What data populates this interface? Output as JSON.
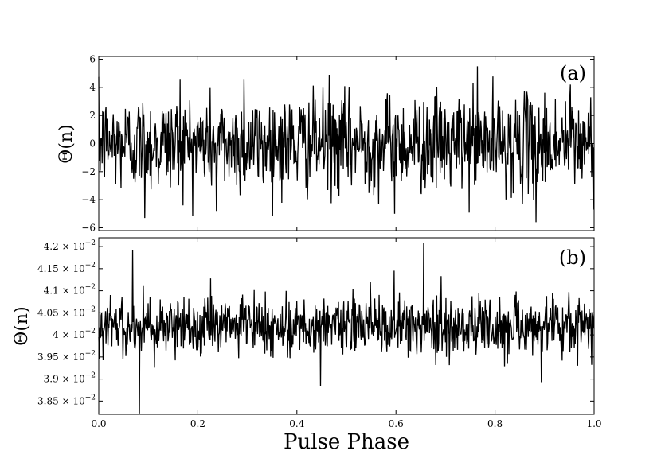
{
  "chart_data": [
    {
      "type": "line",
      "panel_label": "(a)",
      "ylabel": "Θ(n)",
      "xlabel": "",
      "xlim": [
        0.0,
        1.0
      ],
      "ylim": [
        -6.2,
        6.2
      ],
      "yticks": [
        -6,
        -4,
        -2,
        0,
        2,
        4,
        6
      ],
      "ytick_labels": [
        "−6",
        "−4",
        "−2",
        "0",
        "2",
        "4",
        "6"
      ],
      "n_points": 1024,
      "x": [
        0.0,
        1.0
      ],
      "series": [
        {
          "color": "#000000",
          "sample_count": 1024,
          "mean": 0.0,
          "std": 1.8,
          "min": -5.6,
          "max": 5.5,
          "extremes": [
            {
              "x": 0.093,
              "y": -5.3
            },
            {
              "x": 0.164,
              "y": 4.6
            },
            {
              "x": 0.293,
              "y": 4.6
            },
            {
              "x": 0.465,
              "y": 4.9
            },
            {
              "x": 0.764,
              "y": 5.5
            },
            {
              "x": 0.883,
              "y": -5.6
            },
            {
              "x": 0.952,
              "y": 4.2
            },
            {
              "x": 0.597,
              "y": -5.0
            },
            {
              "x": 0.238,
              "y": -4.8
            }
          ]
        }
      ]
    },
    {
      "type": "line",
      "panel_label": "(b)",
      "ylabel": "Θ(n)",
      "xlabel": "Pulse Phase",
      "xlim": [
        0.0,
        1.0
      ],
      "ylim": [
        0.0382,
        0.0422
      ],
      "yticks": [
        0.0385,
        0.039,
        0.0395,
        0.04,
        0.0405,
        0.041,
        0.0415,
        0.042
      ],
      "ytick_mantissas": [
        "3.85",
        "3.9",
        "3.95",
        "4",
        "4.05",
        "4.1",
        "4.15",
        "4.2"
      ],
      "ytick_times": "×",
      "ytick_base": "10",
      "ytick_exp": "−2",
      "xticks": [
        0.0,
        0.2,
        0.4,
        0.6,
        0.8,
        1.0
      ],
      "xtick_labels": [
        "0.0",
        "0.2",
        "0.4",
        "0.6",
        "0.8",
        "1.0"
      ],
      "n_points": 1024,
      "x": [
        0.0,
        1.0
      ],
      "series": [
        {
          "color": "#000000",
          "sample_count": 1024,
          "mean": 0.0402,
          "std": 0.00035,
          "min": 0.03822,
          "max": 0.04208,
          "extremes": [
            {
              "x": 0.068,
              "y": 0.04193
            },
            {
              "x": 0.082,
              "y": 0.03822
            },
            {
              "x": 0.656,
              "y": 0.04208
            },
            {
              "x": 0.448,
              "y": 0.03883
            },
            {
              "x": 0.893,
              "y": 0.03893
            },
            {
              "x": 0.548,
              "y": 0.0412
            }
          ]
        }
      ]
    }
  ]
}
